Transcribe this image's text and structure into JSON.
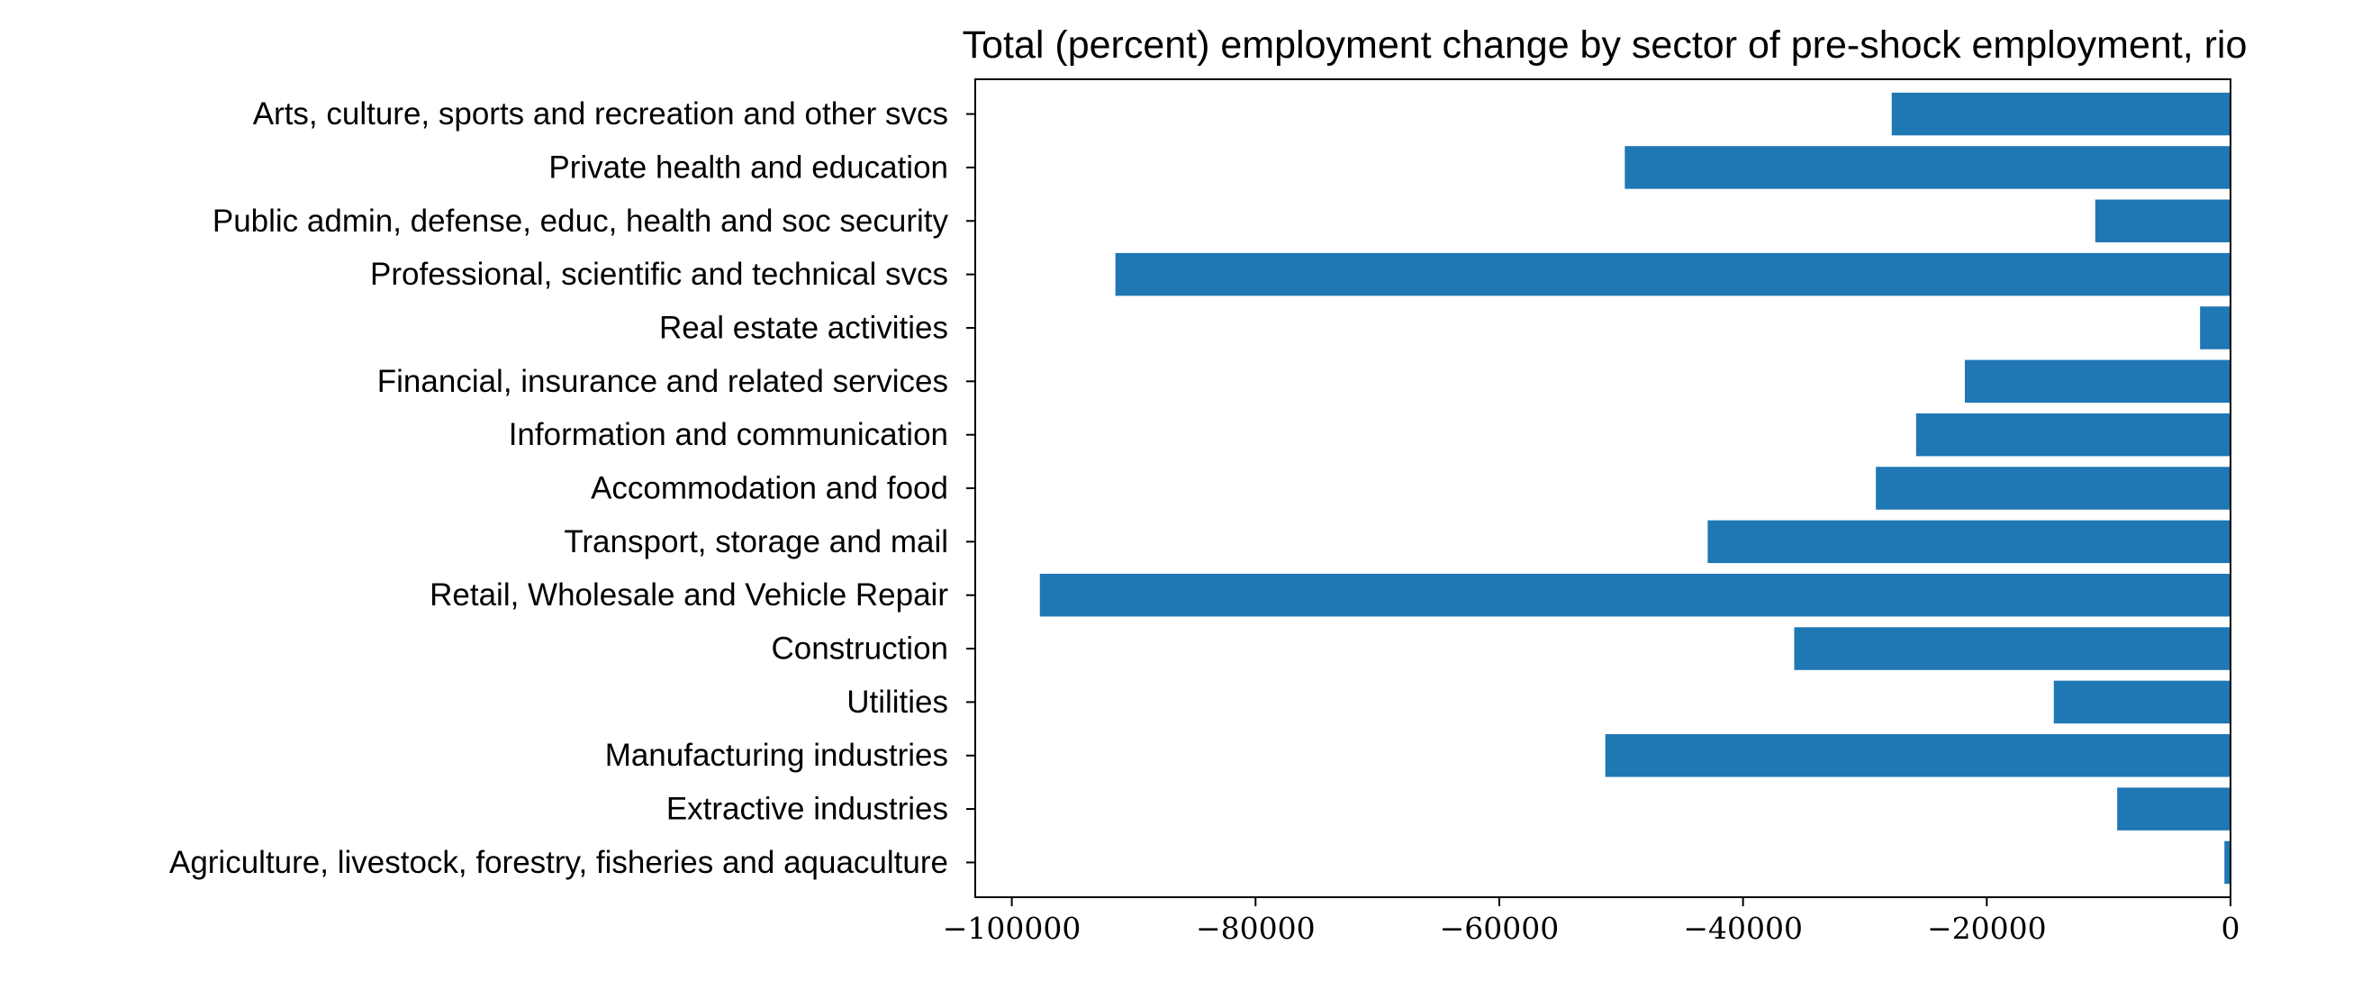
{
  "chart_data": {
    "type": "bar",
    "orientation": "horizontal",
    "title": "Total (percent) employment change by sector of pre-shock employment, rio",
    "xlabel": "",
    "ylabel": "",
    "xlim": [
      -103000,
      0
    ],
    "xticks": [
      -100000,
      -80000,
      -60000,
      -40000,
      -20000,
      0
    ],
    "xtick_labels": [
      "−100000",
      "−80000",
      "−60000",
      "−40000",
      "−20000",
      "0"
    ],
    "grid": false,
    "bar_color": "#1f77b4",
    "categories": [
      "Agriculture, livestock, forestry, fisheries and aquaculture",
      "Extractive industries",
      "Manufacturing industries",
      "Utilities",
      "Construction",
      "Retail, Wholesale and Vehicle Repair",
      "Transport, storage and mail",
      "Accommodation and food",
      "Information and communication",
      "Financial, insurance and related services",
      "Real estate activities",
      "Professional, scientific and technical svcs",
      "Public admin, defense, educ, health and soc security",
      "Private health and education",
      "Arts, culture, sports and recreation and other svcs"
    ],
    "values": [
      -500,
      -9300,
      -51300,
      -14500,
      -35800,
      -97700,
      -42900,
      -29100,
      -25800,
      -21800,
      -2500,
      -91500,
      -11100,
      -49700,
      -27800
    ]
  }
}
